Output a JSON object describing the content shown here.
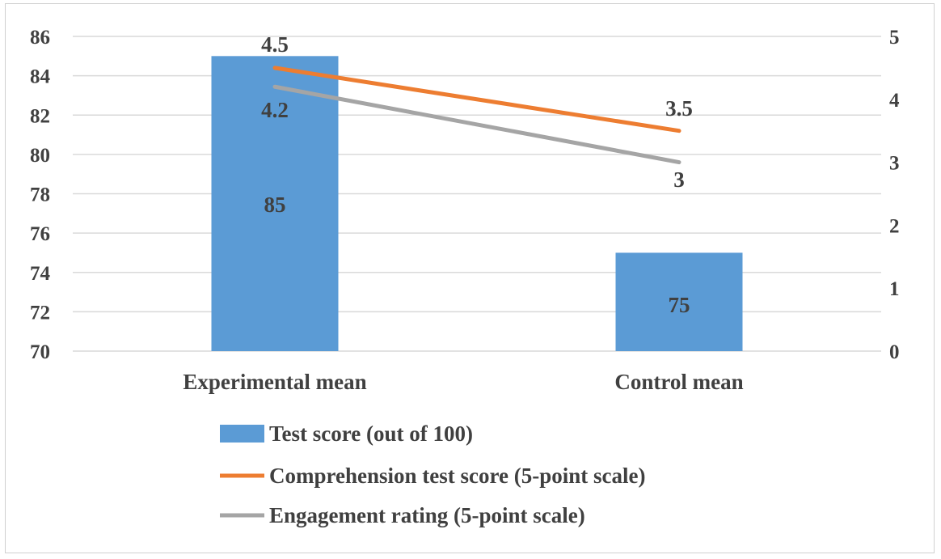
{
  "chart_data": {
    "type": "bar",
    "title": "",
    "categories": [
      "Experimental mean",
      "Control mean"
    ],
    "bar_series": {
      "name": "Test score (out of 100)",
      "values": [
        85,
        75
      ],
      "color": "#5B9BD5",
      "axis": "left"
    },
    "line_series": [
      {
        "name": "Comprehension test score (5-point scale)",
        "values": [
          4.5,
          3.5
        ],
        "color": "#ED7D31",
        "axis": "right"
      },
      {
        "name": "Engagement rating (5-point scale)",
        "values": [
          4.2,
          3
        ],
        "color": "#A5A5A5",
        "axis": "right"
      }
    ],
    "y_left": {
      "min": 70,
      "max": 86,
      "ticks": [
        "70",
        "72",
        "74",
        "76",
        "78",
        "80",
        "82",
        "84",
        "86"
      ]
    },
    "y_right": {
      "min": 0,
      "max": 5,
      "ticks": [
        "0",
        "1",
        "2",
        "3",
        "4",
        "5"
      ]
    },
    "grid": true,
    "legend_position": "bottom",
    "data_labels": {
      "bars": [
        "85",
        "75"
      ],
      "comprehension": [
        "4.5",
        "3.5"
      ],
      "engagement": [
        "4.2",
        "3"
      ]
    }
  }
}
